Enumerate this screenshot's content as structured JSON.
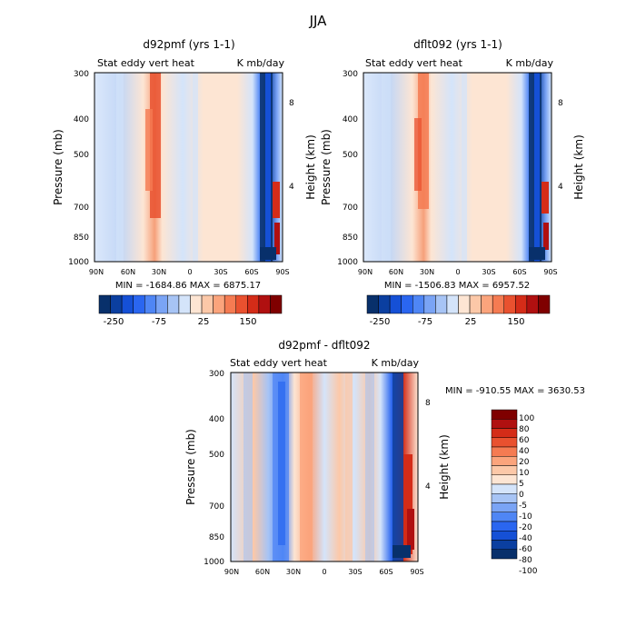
{
  "page_title": "JJA",
  "palette": {
    "negative": [
      "#08306b",
      "#0b3fa0",
      "#1550d6",
      "#2a66f0",
      "#4f86f5",
      "#7aa4f5",
      "#a7c4f5",
      "#d4e4fa"
    ],
    "positive": [
      "#fde5d3",
      "#fcc8a8",
      "#fba47c",
      "#f57b52",
      "#e9512f",
      "#d42c18",
      "#b01010",
      "#7f0000"
    ]
  },
  "chart_data": [
    {
      "type": "heatmap",
      "title": "d92pmf (yrs 1-1)",
      "subtitle_left": "Stat eddy vert heat",
      "subtitle_right": "K mb/day",
      "ylabel": "Pressure (mb)",
      "ylabel_right": "Height (km)",
      "x_ticks": [
        "90N",
        "60N",
        "30N",
        "0",
        "30S",
        "60S",
        "90S"
      ],
      "y_ticks": [
        "300",
        "400",
        "500",
        "700",
        "850",
        "1000"
      ],
      "y_right_ticks": [
        "8",
        "4"
      ],
      "min_max": "MIN = -1684.86   MAX = 6875.17",
      "colorbar_labels": [
        "-250",
        "-75",
        "25",
        "150"
      ]
    },
    {
      "type": "heatmap",
      "title": "dflt092 (yrs 1-1)",
      "subtitle_left": "Stat eddy vert heat",
      "subtitle_right": "K mb/day",
      "ylabel": "Pressure (mb)",
      "ylabel_right": "Height (km)",
      "x_ticks": [
        "90N",
        "60N",
        "30N",
        "0",
        "30S",
        "60S",
        "90S"
      ],
      "y_ticks": [
        "300",
        "400",
        "500",
        "700",
        "850",
        "1000"
      ],
      "y_right_ticks": [
        "8",
        "4"
      ],
      "min_max": "MIN = -1506.83   MAX = 6957.52",
      "colorbar_labels": [
        "-250",
        "-75",
        "25",
        "150"
      ]
    },
    {
      "type": "heatmap",
      "title": "d92pmf - dflt092",
      "subtitle_left": "Stat eddy vert heat",
      "subtitle_right": "K mb/day",
      "ylabel": "Pressure (mb)",
      "ylabel_right": "Height (km)",
      "x_ticks": [
        "90N",
        "60N",
        "30N",
        "0",
        "30S",
        "60S",
        "90S"
      ],
      "y_ticks": [
        "300",
        "400",
        "500",
        "700",
        "850",
        "1000"
      ],
      "y_right_ticks": [
        "8",
        "4"
      ],
      "min_max": "MIN = -910.55   MAX = 3630.53",
      "colorbar_labels": [
        "100",
        "80",
        "60",
        "40",
        "20",
        "10",
        "5",
        "0",
        "-5",
        "-10",
        "-20",
        "-40",
        "-60",
        "-80",
        "-100"
      ]
    }
  ]
}
